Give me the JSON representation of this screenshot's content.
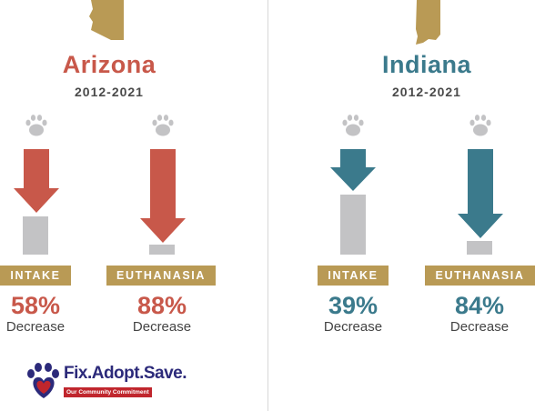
{
  "colors": {
    "arizona_accent": "#c8584a",
    "indiana_accent": "#3b7a8c",
    "gold": "#b99a55",
    "bar_gray": "#c3c3c5"
  },
  "states": [
    {
      "name": "Arizona",
      "years": "2012-2021",
      "icon": "arizona-state-icon",
      "metrics": [
        {
          "label": "INTAKE",
          "percent": "58%",
          "note": "Decrease",
          "decrease": 58
        },
        {
          "label": "EUTHANASIA",
          "percent": "88%",
          "note": "Decrease",
          "decrease": 88
        }
      ]
    },
    {
      "name": "Indiana",
      "years": "2012-2021",
      "icon": "indiana-state-icon",
      "metrics": [
        {
          "label": "INTAKE",
          "percent": "39%",
          "note": "Decrease",
          "decrease": 39
        },
        {
          "label": "EUTHANASIA",
          "percent": "84%",
          "note": "Decrease",
          "decrease": 84
        }
      ]
    }
  ],
  "logo": {
    "title": "Fix.Adopt.Save.",
    "tagline": "Our Community Commitment",
    "icon": "paw-heart-icon"
  }
}
